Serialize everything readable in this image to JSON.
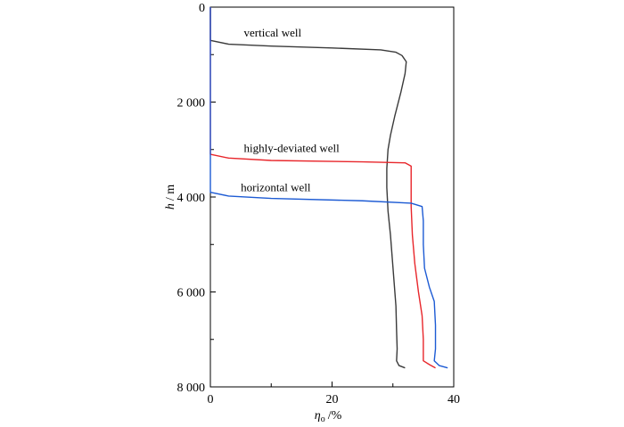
{
  "chart_data": {
    "type": "line",
    "title": "",
    "xlabel": {
      "symbol": "η",
      "subscript": "o",
      "unit": "/%"
    },
    "ylabel": {
      "symbol": "h",
      "unit": "/ m"
    },
    "xlim": [
      0,
      40
    ],
    "ylim": [
      0,
      8000
    ],
    "y_inverted": true,
    "x_ticks": [
      0,
      20,
      40
    ],
    "x_tick_labels": [
      "0",
      "20",
      "40"
    ],
    "y_ticks": [
      0,
      2000,
      4000,
      6000,
      8000
    ],
    "y_tick_labels": [
      "0",
      "2 000",
      "4 000",
      "6 000",
      "8 000"
    ],
    "grid": false,
    "legend": "none",
    "series": [
      {
        "name": "vertical well",
        "color": "#3a3a3a",
        "points": [
          [
            0,
            0
          ],
          [
            0,
            700
          ],
          [
            3,
            780
          ],
          [
            10,
            820
          ],
          [
            20,
            860
          ],
          [
            28,
            900
          ],
          [
            30.5,
            950
          ],
          [
            31.5,
            1020
          ],
          [
            32.2,
            1150
          ],
          [
            32.0,
            1400
          ],
          [
            31.3,
            1800
          ],
          [
            30.3,
            2300
          ],
          [
            29.6,
            2700
          ],
          [
            29.2,
            3000
          ],
          [
            29.0,
            3400
          ],
          [
            29.0,
            3800
          ],
          [
            29.2,
            4300
          ],
          [
            29.6,
            4800
          ],
          [
            29.9,
            5300
          ],
          [
            30.2,
            5800
          ],
          [
            30.5,
            6300
          ],
          [
            30.6,
            6800
          ],
          [
            30.7,
            7200
          ],
          [
            30.6,
            7450
          ],
          [
            31.0,
            7550
          ],
          [
            32.0,
            7600
          ]
        ],
        "label_at": [
          5.5,
          620
        ]
      },
      {
        "name": "highly-deviated well",
        "color": "#e8262b",
        "points": [
          [
            0,
            0
          ],
          [
            0,
            3100
          ],
          [
            3,
            3180
          ],
          [
            10,
            3230
          ],
          [
            25,
            3260
          ],
          [
            32,
            3280
          ],
          [
            33.0,
            3350
          ],
          [
            33.0,
            3700
          ],
          [
            33.0,
            4200
          ],
          [
            33.2,
            4800
          ],
          [
            33.6,
            5400
          ],
          [
            34.2,
            6000
          ],
          [
            34.8,
            6500
          ],
          [
            35.0,
            7000
          ],
          [
            35.0,
            7300
          ],
          [
            35.0,
            7450
          ],
          [
            36.0,
            7530
          ],
          [
            37.0,
            7600
          ]
        ],
        "label_at": [
          5.5,
          3050
        ]
      },
      {
        "name": "horizontal well",
        "color": "#1d5bd4",
        "points": [
          [
            0,
            0
          ],
          [
            0,
            3900
          ],
          [
            3,
            3980
          ],
          [
            10,
            4030
          ],
          [
            25,
            4080
          ],
          [
            33,
            4130
          ],
          [
            34.8,
            4200
          ],
          [
            35.0,
            4500
          ],
          [
            35.0,
            5000
          ],
          [
            35.2,
            5500
          ],
          [
            36.0,
            5900
          ],
          [
            36.8,
            6200
          ],
          [
            37.0,
            6700
          ],
          [
            37.0,
            7200
          ],
          [
            36.8,
            7450
          ],
          [
            37.6,
            7550
          ],
          [
            39.0,
            7600
          ]
        ],
        "label_at": [
          5.0,
          3880
        ]
      }
    ]
  }
}
